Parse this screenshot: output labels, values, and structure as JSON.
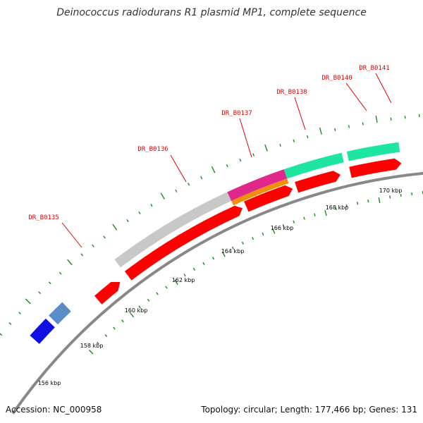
{
  "title": "Deinococcus radiodurans R1 plasmid MP1, complete sequence",
  "footer": {
    "accession": "Accession: NC_000958",
    "summary": "Topology: circular; Length: 177,466 bp; Genes: 131"
  },
  "colors": {
    "cds": "#ff0000",
    "gray": "#c8c8c8",
    "magenta": "#e0288c",
    "orange": "#f0900a",
    "teal": "#1ee6a0",
    "darkgray": "#646464",
    "blue": "#1010e0",
    "steelblue": "#5a8cc8",
    "tick": "#1a8c1a",
    "backbone": "#888888"
  },
  "gene_labels": [
    "DR_B0135",
    "DR_B0136",
    "DR_B0137",
    "DR_B0138",
    "DR_B0140",
    "DR_B0141"
  ],
  "kbp_labels": [
    "156 kbp",
    "158 kbp",
    "160 kbp",
    "162 kbp",
    "164 kbp",
    "166 kbp",
    "168 kbp",
    "170 kbp"
  ]
}
